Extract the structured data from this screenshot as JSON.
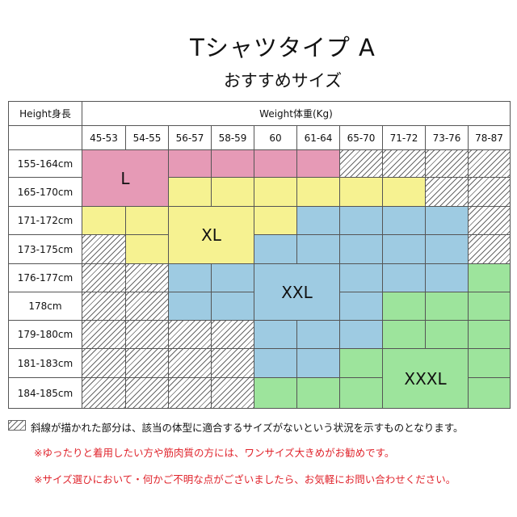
{
  "header": {
    "title": "Tシャツタイプ A",
    "subtitle": "おすすめサイズ"
  },
  "table": {
    "height_header": "Height身長",
    "weight_header": "Weight体重(Kg)",
    "weights": [
      "45-53",
      "54-55",
      "56-57",
      "58-59",
      "60",
      "61-64",
      "65-70",
      "71-72",
      "73-76",
      "78-87"
    ],
    "heights": [
      "155-164cm",
      "165-170cm",
      "171-172cm",
      "173-175cm",
      "176-177cm",
      "178cm",
      "179-180cm",
      "181-183cm",
      "184-185cm"
    ],
    "cells": [
      [
        "L",
        "L",
        "L",
        "L",
        "L",
        "L",
        "none",
        "none",
        "none",
        "none"
      ],
      [
        "L",
        "L",
        "XL",
        "XL",
        "XL",
        "XL",
        "XL",
        "XL",
        "none",
        "none"
      ],
      [
        "XL",
        "XL",
        "XL",
        "XL",
        "XL",
        "XXL",
        "XXL",
        "XXL",
        "XXL",
        "none"
      ],
      [
        "none",
        "XL",
        "XL",
        "XL",
        "XXL",
        "XXL",
        "XXL",
        "XXL",
        "XXL",
        "none"
      ],
      [
        "none",
        "none",
        "XXL",
        "XXL",
        "XXL",
        "XXL",
        "XXL",
        "XXL",
        "XXL",
        "XXXL"
      ],
      [
        "none",
        "none",
        "XXL",
        "XXL",
        "XXL",
        "XXL",
        "XXL",
        "XXXL",
        "XXXL",
        "XXXL"
      ],
      [
        "none",
        "none",
        "none",
        "none",
        "XXL",
        "XXL",
        "XXL",
        "XXXL",
        "XXXL",
        "XXXL"
      ],
      [
        "none",
        "none",
        "none",
        "none",
        "XXL",
        "XXL",
        "XXXL",
        "XXXL",
        "XXXL",
        "XXXL"
      ],
      [
        "none",
        "none",
        "none",
        "none",
        "XXXL",
        "XXXL",
        "XXXL",
        "XXXL",
        "XXXL",
        "XXXL"
      ]
    ],
    "size_labels": [
      {
        "label": "L",
        "rows": [
          0,
          1
        ],
        "cols": [
          0,
          1
        ]
      },
      {
        "label": "XL",
        "rows": [
          2,
          3
        ],
        "cols": [
          2,
          3
        ]
      },
      {
        "label": "XXL",
        "rows": [
          4,
          5
        ],
        "cols": [
          4,
          5
        ]
      },
      {
        "label": "XXXL",
        "rows": [
          7,
          8
        ],
        "cols": [
          7,
          8
        ]
      }
    ],
    "colors": {
      "L": "#e69ab6",
      "XL": "#f6f291",
      "XXL": "#9ecbe2",
      "XXXL": "#9de49c"
    }
  },
  "notes": {
    "legend": "斜線が描かれた部分は、該当の体型に適合するサイズがないという状況を示すものとなります。",
    "note1": "※ゆったりと着用したい方や筋肉質の方には、ワンサイズ大きめがお勧めです。",
    "note2": "※サイズ選ひにおいて・何かご不明な点がございましたら、お気軽にお問い合わせください。"
  }
}
